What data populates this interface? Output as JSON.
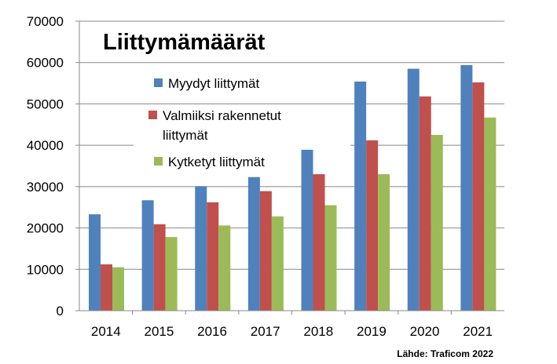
{
  "chart_data": {
    "type": "bar",
    "title": "Liittymämäärät",
    "categories": [
      "2014",
      "2015",
      "2016",
      "2017",
      "2018",
      "2019",
      "2020",
      "2021"
    ],
    "series": [
      {
        "name": "Myydyt liittymät",
        "color": "#4F81BD",
        "values": [
          23300,
          26700,
          30100,
          32300,
          38900,
          55400,
          58500,
          59400
        ]
      },
      {
        "name_lines": [
          "Valmiiksi rakennetut",
          "liittymät"
        ],
        "color": "#C0504D",
        "values": [
          11200,
          20900,
          26200,
          28900,
          33000,
          41200,
          51800,
          55200
        ]
      },
      {
        "name": "Kytketyt liittymät",
        "color": "#9BBB59",
        "values": [
          10500,
          17800,
          20600,
          22800,
          25500,
          33000,
          42500,
          46700
        ]
      }
    ],
    "ylim": [
      0,
      70000
    ],
    "yticks": [
      "0",
      "10000",
      "20000",
      "30000",
      "40000",
      "50000",
      "60000",
      "70000"
    ],
    "grid": true,
    "legend_position": "top-left inside plot",
    "source": "Lähde: Traficom 2022"
  }
}
